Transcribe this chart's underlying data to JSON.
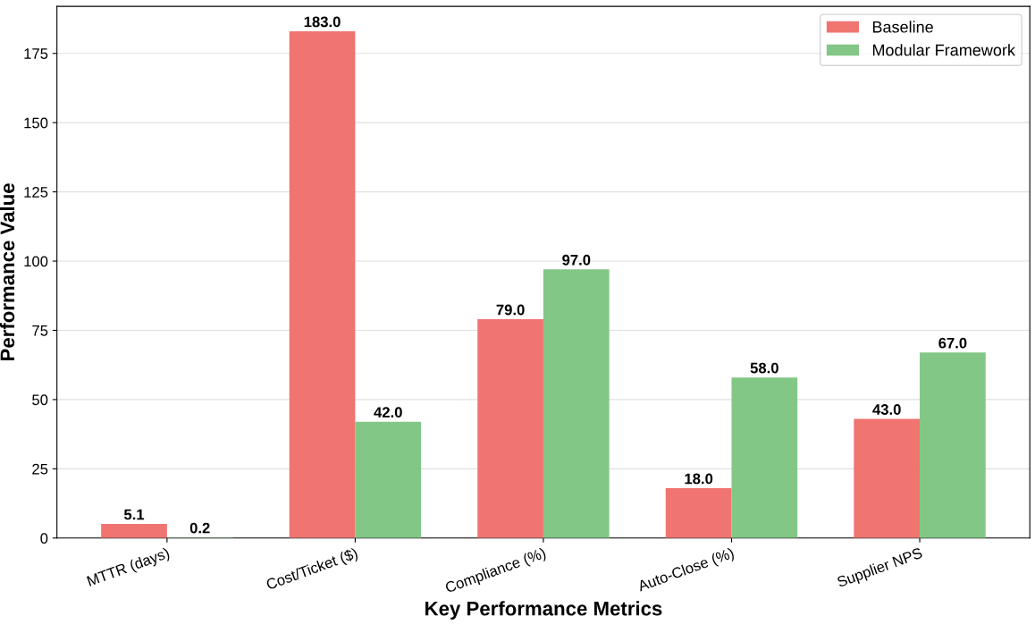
{
  "chart_data": {
    "type": "bar",
    "xlabel": "Key Performance Metrics",
    "ylabel": "Performance Value",
    "categories": [
      "MTTR (days)",
      "Cost/Ticket ($)",
      "Compliance (%)",
      "Auto-Close (%)",
      "Supplier NPS"
    ],
    "series": [
      {
        "name": "Baseline",
        "color": "#f07470",
        "values": [
          5.1,
          183.0,
          79.0,
          18.0,
          43.0
        ],
        "value_labels": [
          "5.1",
          "183.0",
          "79.0",
          "18.0",
          "43.0"
        ]
      },
      {
        "name": "Modular Framework",
        "color": "#82c785",
        "values": [
          0.2,
          42.0,
          97.0,
          58.0,
          67.0
        ],
        "value_labels": [
          "0.2",
          "42.0",
          "97.0",
          "58.0",
          "67.0"
        ]
      }
    ],
    "ylim": [
      0,
      192
    ],
    "yticks": [
      0,
      25,
      50,
      75,
      100,
      125,
      150,
      175
    ],
    "grid": "y",
    "legend": "top right"
  }
}
